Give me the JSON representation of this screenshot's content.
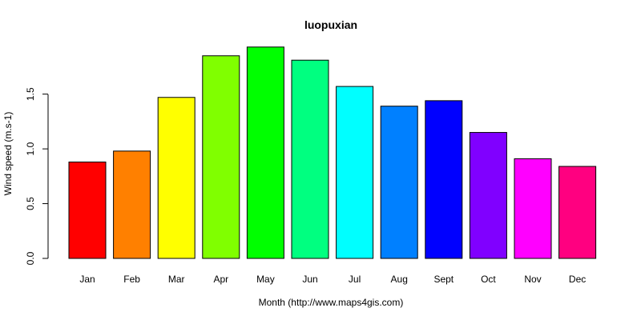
{
  "chart_data": {
    "type": "bar",
    "title": "luopuxian",
    "xlabel": "Month (http://www.maps4gis.com)",
    "ylabel": "Wind speed (m.s-1)",
    "categories": [
      "Jan",
      "Feb",
      "Mar",
      "Apr",
      "May",
      "Jun",
      "Jul",
      "Aug",
      "Sept",
      "Oct",
      "Nov",
      "Dec"
    ],
    "values": [
      0.88,
      0.98,
      1.47,
      1.85,
      1.93,
      1.81,
      1.57,
      1.39,
      1.44,
      1.15,
      0.91,
      0.84
    ],
    "colors": [
      "#FF0000",
      "#FF8000",
      "#FFFF00",
      "#80FF00",
      "#00FF00",
      "#00FF80",
      "#00FFFF",
      "#0080FF",
      "#0000FF",
      "#8000FF",
      "#FF00FF",
      "#FF0080"
    ],
    "ylim": [
      0,
      1.93
    ],
    "yticks": [
      0.0,
      0.5,
      1.0,
      1.5
    ],
    "ytick_labels": [
      "0.0",
      "0.5",
      "1.0",
      "1.5"
    ],
    "grid": false,
    "legend": "none"
  }
}
